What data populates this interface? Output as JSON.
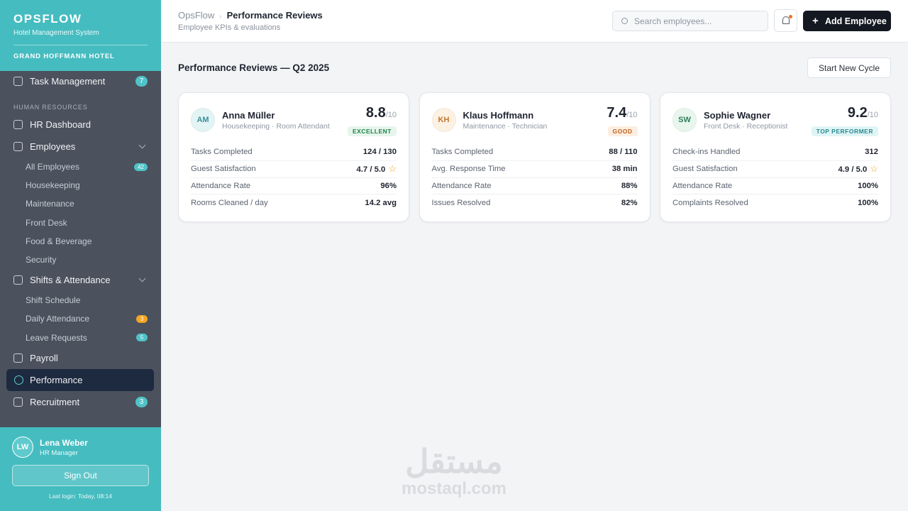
{
  "sidebar": {
    "brand": "OPSFLOW",
    "subtitle": "Hotel Management System",
    "hotel": "GRAND HOFFMANN HOTEL",
    "top": [
      {
        "label": "Task Management",
        "badge": 7,
        "badge_color": "#4fc3c8"
      }
    ],
    "section": "HUMAN RESOURCES",
    "groups": [
      {
        "label": "HR Dashboard"
      },
      {
        "label": "Employees",
        "children": [
          {
            "label": "All Employees",
            "badge": 42,
            "badge_color": "#4fc3c8"
          },
          {
            "label": "Housekeeping"
          },
          {
            "label": "Maintenance"
          },
          {
            "label": "Front Desk"
          },
          {
            "label": "Food & Beverage"
          },
          {
            "label": "Security"
          }
        ]
      },
      {
        "label": "Shifts & Attendance",
        "children": [
          {
            "label": "Shift Schedule"
          },
          {
            "label": "Daily Attendance",
            "badge": 3,
            "badge_color": "#f5a524"
          },
          {
            "label": "Leave Requests",
            "badge": 5,
            "badge_color": "#4fc3c8"
          }
        ]
      },
      {
        "label": "Payroll"
      },
      {
        "label": "Performance",
        "active": true
      },
      {
        "label": "Recruitment",
        "badge": 3,
        "badge_color": "#4fc3c8"
      }
    ],
    "user": {
      "initials": "LW",
      "name": "Lena Weber",
      "role": "HR Manager"
    },
    "sign_out": "Sign Out",
    "last_login": "Last login: Today, 08:14"
  },
  "header": {
    "breadcrumb_root": "OpsFlow",
    "breadcrumb_page": "Performance Reviews",
    "subtitle": "Employee KPIs & evaluations",
    "search_placeholder": "Search employees...",
    "add_button": "Add Employee"
  },
  "content": {
    "title": "Performance Reviews — Q2 2025",
    "cycle_button": "Start New Cycle",
    "cards": [
      {
        "initials": "AM",
        "name": "Anna Müller",
        "role": "Housekeeping · Room Attendant",
        "score": 8.8,
        "score_max": "/10",
        "rating": "EXCELLENT",
        "avatar_bg": "#e3f4f5",
        "avatar_fg": "#3a8f96",
        "rating_bg": "#e5f6ec",
        "rating_fg": "#23804a",
        "metrics": [
          {
            "label": "Tasks Completed",
            "value": "124 / 130"
          },
          {
            "label": "Guest Satisfaction",
            "value": "4.7 / 5.0",
            "star": true
          },
          {
            "label": "Attendance Rate",
            "value": "96%"
          },
          {
            "label": "Rooms Cleaned / day",
            "value": "14.2 avg"
          }
        ]
      },
      {
        "initials": "KH",
        "name": "Klaus Hoffmann",
        "role": "Maintenance · Technician",
        "score": 7.4,
        "score_max": "/10",
        "rating": "GOOD",
        "avatar_bg": "#fdf1e4",
        "avatar_fg": "#c6742a",
        "rating_bg": "#fdeee0",
        "rating_fg": "#c0621d",
        "metrics": [
          {
            "label": "Tasks Completed",
            "value": "88 / 110"
          },
          {
            "label": "Avg. Response Time",
            "value": "38 min"
          },
          {
            "label": "Attendance Rate",
            "value": "88%"
          },
          {
            "label": "Issues Resolved",
            "value": "82%"
          }
        ]
      },
      {
        "initials": "SW",
        "name": "Sophie Wagner",
        "role": "Front Desk · Receptionist",
        "score": 9.2,
        "score_max": "/10",
        "rating": "TOP PERFORMER",
        "avatar_bg": "#e8f6ee",
        "avatar_fg": "#2f7d58",
        "rating_bg": "#e0f4f5",
        "rating_fg": "#2a8a90",
        "metrics": [
          {
            "label": "Check-ins Handled",
            "value": "312"
          },
          {
            "label": "Guest Satisfaction",
            "value": "4.9 / 5.0",
            "star": true
          },
          {
            "label": "Attendance Rate",
            "value": "100%"
          },
          {
            "label": "Complaints Resolved",
            "value": "100%"
          }
        ]
      }
    ]
  },
  "watermark": {
    "arabic": "مستقل",
    "latin": "mostaql.com"
  }
}
